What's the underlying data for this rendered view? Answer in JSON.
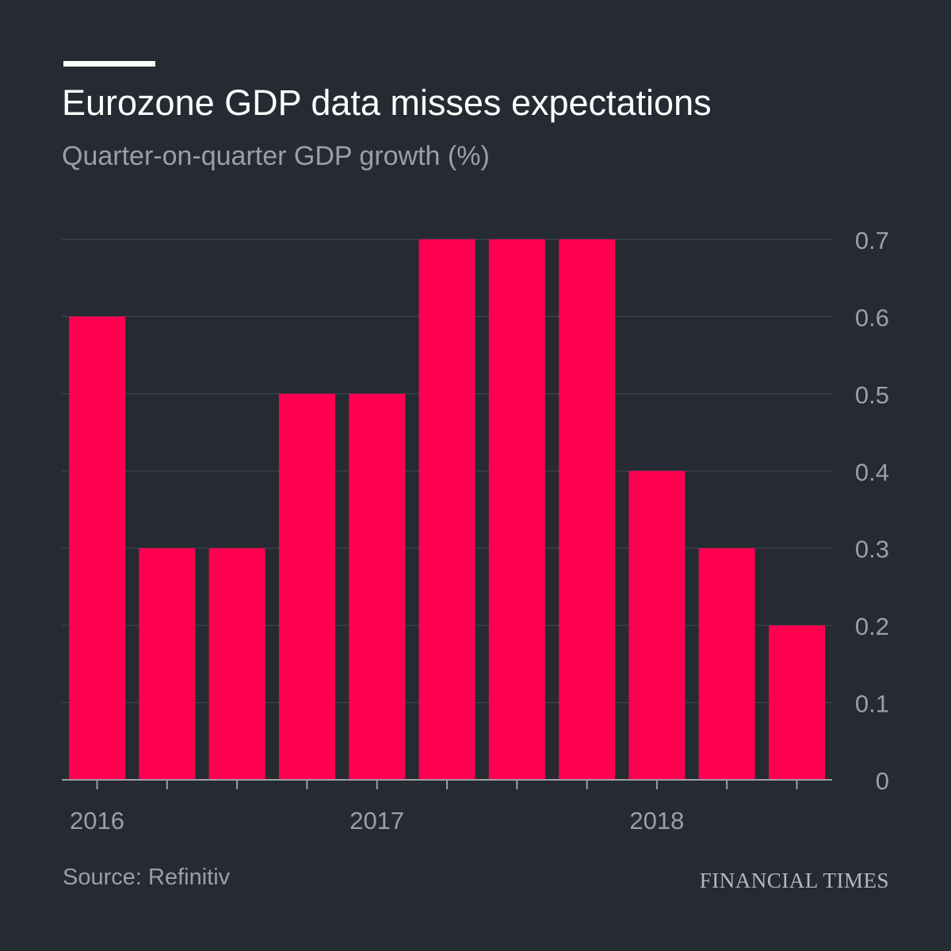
{
  "header": {
    "title": "Eurozone GDP data misses expectations",
    "subtitle": "Quarter-on-quarter GDP growth (%)"
  },
  "footer": {
    "source": "Source: Refinitiv",
    "logo": "FINANCIAL TIMES"
  },
  "colors": {
    "background": "#262a33",
    "bar": "#ff0050",
    "gridline": "#464a53",
    "axis": "#9e9ea6",
    "tick_label": "#9e9ea6"
  },
  "chart_data": {
    "type": "bar",
    "title": "Eurozone GDP data misses expectations",
    "subtitle": "Quarter-on-quarter GDP growth (%)",
    "categories": [
      "2016 Q1",
      "2016 Q2",
      "2016 Q3",
      "2016 Q4",
      "2017 Q1",
      "2017 Q2",
      "2017 Q3",
      "2017 Q4",
      "2018 Q1",
      "2018 Q2",
      "2018 Q3"
    ],
    "values": [
      0.6,
      0.3,
      0.3,
      0.5,
      0.5,
      0.7,
      0.7,
      0.7,
      0.4,
      0.3,
      0.2
    ],
    "x_tick_labels": [
      {
        "label": "2016",
        "index": 0
      },
      {
        "label": "2017",
        "index": 4
      },
      {
        "label": "2018",
        "index": 8
      }
    ],
    "y_ticks": [
      {
        "value": 0,
        "label": "0"
      },
      {
        "value": 0.1,
        "label": "0.1"
      },
      {
        "value": 0.2,
        "label": "0.2"
      },
      {
        "value": 0.3,
        "label": "0.3"
      },
      {
        "value": 0.4,
        "label": "0.4"
      },
      {
        "value": 0.5,
        "label": "0.5"
      },
      {
        "value": 0.6,
        "label": "0.6"
      },
      {
        "value": 0.7,
        "label": "0.7"
      }
    ],
    "ylim": [
      0,
      0.7
    ],
    "y_axis_side": "right",
    "grid": true,
    "xlabel": "",
    "ylabel": ""
  }
}
